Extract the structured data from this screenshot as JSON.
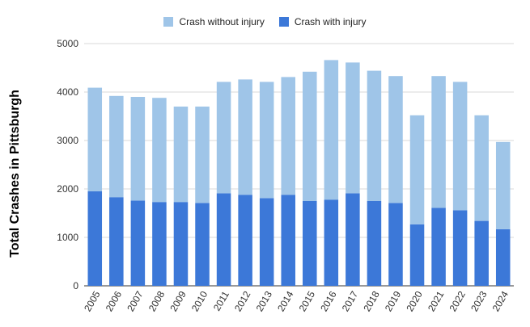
{
  "chart_data": {
    "type": "bar",
    "stacked": true,
    "categories": [
      "2005",
      "2006",
      "2007",
      "2008",
      "2009",
      "2010",
      "2011",
      "2012",
      "2013",
      "2014",
      "2015",
      "2016",
      "2017",
      "2018",
      "2019",
      "2020",
      "2021",
      "2022",
      "2023",
      "2024"
    ],
    "series": [
      {
        "name": "Crash with injury",
        "color": "#3c78d8",
        "values": [
          1950,
          1830,
          1760,
          1730,
          1730,
          1710,
          1910,
          1880,
          1810,
          1880,
          1750,
          1780,
          1910,
          1750,
          1710,
          1270,
          1610,
          1560,
          1340,
          1170
        ]
      },
      {
        "name": "Crash without injury",
        "color": "#9fc5e8",
        "values": [
          2140,
          2090,
          2140,
          2150,
          1970,
          1990,
          2300,
          2380,
          2400,
          2430,
          2670,
          2880,
          2700,
          2690,
          2620,
          2250,
          2720,
          2650,
          2180,
          1800
        ]
      }
    ],
    "legend": [
      "Crash without injury",
      "Crash with injury"
    ],
    "legend_position": "top",
    "ylabel": "Total Crashes in Pittsburgh",
    "xlabel": "",
    "ylim": [
      0,
      5000
    ],
    "yticks": [
      0,
      1000,
      2000,
      3000,
      4000,
      5000
    ],
    "grid": true
  }
}
